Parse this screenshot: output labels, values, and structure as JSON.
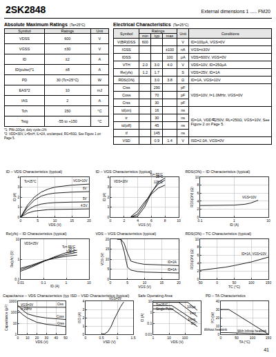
{
  "header": {
    "part_number": "2SK2848",
    "external_dimensions": "External dimensions 1 ..... FM20"
  },
  "absolute_maximum_ratings": {
    "title": "Absolute Maximum Ratings",
    "condition": "(Ta=25°C)",
    "columns": [
      "Symbol",
      "Ratings",
      "Unit"
    ],
    "rows": [
      [
        "VDSS",
        "600",
        "V"
      ],
      [
        "VGSS",
        "±30",
        "V"
      ],
      [
        "ID",
        "±2",
        "A"
      ],
      [
        "ID(pulse)*1",
        "±8",
        "A"
      ],
      [
        "PD",
        "30 (Tc=25°C)",
        "W"
      ],
      [
        "EAS*2",
        "10",
        "mJ"
      ],
      [
        "IAS",
        "2",
        "A"
      ],
      [
        "Tch",
        "150",
        "°C"
      ],
      [
        "Tstg",
        "-55 to +150",
        "°C"
      ]
    ],
    "footnotes": [
      "*1: PW≤100μs, duty cycle≤1%",
      "*2: VDD=30V, L=5mH, IL=2A, unclamped, RG=50Ω, See Figure 1 on Page 5."
    ]
  },
  "electrical_characteristics": {
    "title": "Electrical Characteristics",
    "condition": "(Ta=25°C)",
    "columns": [
      "Symbol",
      "Ratings",
      "Unit",
      "Conditions"
    ],
    "subcolumns": [
      "min",
      "typ",
      "max"
    ],
    "rows": [
      [
        "V(BR)DSS",
        "600",
        null,
        null,
        "V",
        "ID=100μA, VGS=0V"
      ],
      [
        "IGSS",
        null,
        null,
        "±100",
        "nA",
        "VGS=±30V"
      ],
      [
        "IDSS",
        null,
        null,
        "100",
        "μA",
        "VDS=600V, VGS=0V"
      ],
      [
        "VTH",
        "2.0",
        "3.0",
        "4.0",
        "V",
        "VDS=10V, ID=250μA"
      ],
      [
        "Re(yfs)",
        "1.2",
        "1.7",
        null,
        "S",
        "VDS=25V, ID=1A"
      ],
      [
        "RDS(ON)",
        null,
        "3.0",
        "3.8",
        "Ω",
        "ID=1A, VGS=10V"
      ],
      [
        "Ciss",
        null,
        "290",
        null,
        "pF",
        "VDS=10V, f=1.0MHz, VGS=0V"
      ],
      [
        "Coss",
        null,
        "70",
        null,
        "pF",
        null
      ],
      [
        "Crss",
        null,
        "30",
        null,
        "pF",
        null
      ],
      [
        "td(on)",
        null,
        "16",
        null,
        "ns",
        "ID=1A, VDD≒250V, RL=250Ω, VGS=10V, See Figure 2 on Page 5."
      ],
      [
        "tr",
        null,
        "30",
        null,
        "ns",
        null
      ],
      [
        "td(off)",
        null,
        "45",
        null,
        "ns",
        null
      ],
      [
        "tf",
        null,
        "145",
        null,
        "ns",
        null
      ],
      [
        "VSD",
        null,
        "0.9",
        "1.4",
        "V",
        "ISD=2.0A, VGS=0V"
      ]
    ]
  },
  "chart_data": [
    {
      "type": "line",
      "title": "ID – VDS Characteristics (typical)",
      "x_label": "VDS (V)",
      "y_label": "ID (A)",
      "xlim": [
        0,
        20
      ],
      "xticks": [
        0,
        5,
        10,
        15,
        20
      ],
      "ylim": [
        0,
        4
      ],
      "yticks": [
        0,
        1,
        2,
        3,
        4
      ],
      "grid": true,
      "color": "#000000",
      "notes": [
        "Tc=25°C"
      ],
      "series": [
        {
          "name": "VGS=10V",
          "x": [
            0,
            2,
            4,
            6,
            8,
            10,
            15,
            20
          ],
          "values": [
            0,
            1.2,
            2.0,
            2.5,
            2.8,
            3.0,
            3.2,
            3.3
          ]
        },
        {
          "name": "6V",
          "x": [
            0,
            2,
            4,
            6,
            8,
            10,
            15,
            20
          ],
          "values": [
            0,
            1.0,
            1.7,
            2.1,
            2.3,
            2.4,
            2.5,
            2.55
          ]
        },
        {
          "name": "5V",
          "x": [
            0,
            2,
            4,
            6,
            8,
            10,
            15,
            20
          ],
          "values": [
            0,
            0.7,
            1.1,
            1.3,
            1.4,
            1.45,
            1.5,
            1.52
          ]
        },
        {
          "name": "4.5V",
          "x": [
            0,
            2,
            4,
            6,
            8,
            10,
            15,
            20
          ],
          "values": [
            0,
            0.4,
            0.6,
            0.7,
            0.75,
            0.77,
            0.8,
            0.82
          ]
        }
      ]
    },
    {
      "type": "line",
      "title": "ID – VGS Characteristics (typical)",
      "x_label": "VGS (V)",
      "y_label": "ID (A)",
      "xlim": [
        0,
        10
      ],
      "xticks": [
        0,
        2,
        4,
        6,
        8,
        10
      ],
      "ylim": [
        0,
        4
      ],
      "yticks": [
        0,
        1,
        2,
        3,
        4
      ],
      "grid": true,
      "color": "#000000",
      "notes": [
        "VDS=20V"
      ],
      "series": [
        {
          "name": "Tc=-55°C",
          "x": [
            3,
            4,
            5,
            6,
            7,
            8
          ],
          "values": [
            0,
            0.1,
            1.0,
            2.4,
            3.5,
            3.9
          ]
        },
        {
          "name": "25°C",
          "x": [
            3,
            4,
            5,
            6,
            7,
            8
          ],
          "values": [
            0,
            0.3,
            1.3,
            2.5,
            3.3,
            3.7
          ]
        },
        {
          "name": "125°C",
          "x": [
            3,
            4,
            5,
            6,
            7,
            8
          ],
          "values": [
            0.05,
            0.6,
            1.5,
            2.3,
            2.9,
            3.2
          ]
        }
      ]
    },
    {
      "type": "line",
      "title": "RDS(ON) – ID Characteristics (typical)",
      "x_label": "ID (A)",
      "y_label": "RDS(ON) (Ω)",
      "log": "x",
      "xlim": [
        0.1,
        10
      ],
      "xticks": [
        0.1,
        1,
        10
      ],
      "ylim": [
        0,
        10
      ],
      "yticks": [
        0,
        2,
        4,
        6,
        8,
        10
      ],
      "grid": true,
      "color": "#000000",
      "series": [
        {
          "name": "VGS=10V",
          "x": [
            0.1,
            0.3,
            1,
            2,
            3,
            5
          ],
          "values": [
            2.9,
            2.9,
            3.0,
            3.2,
            3.5,
            4.2
          ]
        }
      ]
    },
    {
      "type": "line",
      "title": "Re(yfs) – ID Characteristics (typical)",
      "x_label": "ID (A)",
      "y_label": "Re(yfs) (S)",
      "log": true,
      "xlim": [
        0.01,
        10
      ],
      "xticks": [
        0.01,
        0.1,
        1,
        10
      ],
      "ylim": [
        0.1,
        10
      ],
      "yticks": [
        0.1,
        1,
        10
      ],
      "grid": true,
      "color": "#000000",
      "notes": [
        "VDS=25V"
      ],
      "series": [
        {
          "name": "Tc=-55°C",
          "x": [
            0.01,
            0.03,
            0.1,
            0.3,
            1,
            3
          ],
          "values": [
            0.25,
            0.4,
            0.75,
            1.3,
            2.1,
            2.8
          ]
        },
        {
          "name": "25°C",
          "x": [
            0.01,
            0.03,
            0.1,
            0.3,
            1,
            3
          ],
          "values": [
            0.3,
            0.45,
            0.8,
            1.2,
            1.7,
            2.2
          ]
        },
        {
          "name": "125°C",
          "x": [
            0.01,
            0.03,
            0.1,
            0.3,
            1,
            3
          ],
          "values": [
            0.35,
            0.5,
            0.8,
            1.1,
            1.4,
            1.6
          ]
        }
      ]
    },
    {
      "type": "line",
      "title": "VDS – VGS Characteristics (typical)",
      "x_label": "VGS (V)",
      "y_label": "VDS (V)",
      "xlim": [
        0,
        20
      ],
      "xticks": [
        0,
        5,
        10,
        15,
        20
      ],
      "ylim": [
        0,
        20
      ],
      "yticks": [
        0,
        5,
        10,
        15,
        20
      ],
      "grid": true,
      "color": "#000000",
      "series": [
        {
          "name": "ID=2A",
          "x": [
            2,
            3,
            4,
            5,
            6,
            8,
            10,
            15,
            20
          ],
          "values": [
            20,
            20,
            18,
            13,
            9,
            8,
            7.4,
            7,
            6.8
          ]
        },
        {
          "name": "ID=1A",
          "x": [
            2,
            3,
            4,
            5,
            6,
            8,
            10,
            15,
            20
          ],
          "values": [
            20,
            20,
            14,
            6,
            4.5,
            3.8,
            3.5,
            3.2,
            3.1
          ]
        }
      ]
    },
    {
      "type": "line",
      "title": "RDS(ON) – TC Characteristics (typical)",
      "x_label": "TC (°C)",
      "y_label": "RDS(ON) (Ω)",
      "xlim": [
        -50,
        150
      ],
      "xticks": [
        -50,
        0,
        50,
        100,
        150
      ],
      "ylim": [
        0,
        10
      ],
      "yticks": [
        0,
        2,
        4,
        6,
        8,
        10
      ],
      "grid": true,
      "color": "#000000",
      "series": [
        {
          "name": "ID=1A, VGS=10V",
          "x": [
            -50,
            0,
            25,
            50,
            100,
            150
          ],
          "values": [
            2.2,
            2.7,
            3.0,
            3.4,
            4.3,
            5.5
          ]
        }
      ]
    },
    {
      "type": "line",
      "title": "Capacitance – VDS Characteristics (typical)",
      "x_label": "VDS (V)",
      "y_label": "Capacitance (pF)",
      "log": "y",
      "xlim": [
        0,
        50
      ],
      "xticks": [
        0,
        10,
        20,
        30,
        40,
        50
      ],
      "ylim": [
        1,
        1000
      ],
      "yticks": [
        1,
        10,
        100,
        1000
      ],
      "grid": true,
      "color": "#000000",
      "notes": [
        "VGS=0V",
        "f=1MHz"
      ],
      "series": [
        {
          "name": "Ciss",
          "x": [
            0,
            5,
            10,
            20,
            30,
            40,
            50
          ],
          "values": [
            320,
            300,
            290,
            285,
            280,
            280,
            280
          ]
        },
        {
          "name": "Coss",
          "x": [
            0,
            5,
            10,
            20,
            30,
            40,
            50
          ],
          "values": [
            400,
            150,
            70,
            40,
            30,
            25,
            22
          ]
        },
        {
          "name": "Crss",
          "x": [
            0,
            5,
            10,
            20,
            30,
            40,
            50
          ],
          "values": [
            150,
            60,
            30,
            12,
            8,
            6,
            5
          ]
        }
      ]
    },
    {
      "type": "line",
      "title": "ISD – VSD Characteristics (typical)",
      "x_label": "VSD (V)",
      "y_label": "ISD (A)",
      "xlim": [
        0,
        1.5
      ],
      "xticks": [
        0,
        0.5,
        1,
        1.5
      ],
      "ylim": [
        0,
        4
      ],
      "yticks": [
        0,
        1,
        2,
        3,
        4
      ],
      "grid": true,
      "color": "#000000",
      "series": [
        {
          "name": "VGS=0V",
          "x": [
            0.5,
            0.6,
            0.7,
            0.8,
            0.9,
            1.0,
            1.1,
            1.2
          ],
          "values": [
            0,
            0.05,
            0.3,
            0.9,
            1.8,
            2.6,
            3.3,
            3.9
          ]
        }
      ]
    },
    {
      "type": "line",
      "title": "Safe Operating Area",
      "x_label": "VDS (V)",
      "y_label": "ID (A)",
      "log": true,
      "xlim": [
        1,
        1000
      ],
      "xticks": [
        1,
        10,
        100,
        1000
      ],
      "ylim": [
        0.01,
        10
      ],
      "yticks": [
        0.01,
        0.1,
        1,
        10
      ],
      "grid": true,
      "color": "#000000",
      "notes": [
        "Tc=25°C",
        "Single Pulse"
      ],
      "series": [
        {
          "name": "100μs",
          "x": [
            1,
            150,
            600
          ],
          "values": [
            8,
            8,
            1.5
          ]
        },
        {
          "name": "1ms",
          "x": [
            1,
            40,
            600
          ],
          "values": [
            8,
            8,
            0.4
          ]
        },
        {
          "name": "10ms",
          "x": [
            1,
            15,
            600
          ],
          "values": [
            4,
            4,
            0.12
          ]
        },
        {
          "name": "DC",
          "x": [
            1,
            15,
            600
          ],
          "values": [
            2,
            2,
            0.05
          ]
        }
      ]
    },
    {
      "type": "line",
      "title": "PD – TA Characteristics",
      "x_label": "TA (°C)",
      "y_label": "PD (W)",
      "xlim": [
        0,
        150
      ],
      "xticks": [
        0,
        50,
        100,
        150
      ],
      "ylim": [
        0,
        40
      ],
      "yticks": [
        0,
        10,
        20,
        30,
        40
      ],
      "grid": true,
      "color": "#000000",
      "series": [
        {
          "name": "With Infinite heatsink",
          "x": [
            0,
            25,
            150
          ],
          "values": [
            30,
            30,
            0
          ]
        },
        {
          "name": "Without heatsink",
          "x": [
            0,
            25,
            150
          ],
          "values": [
            2,
            2,
            0
          ]
        }
      ]
    }
  ],
  "page_number": "41"
}
